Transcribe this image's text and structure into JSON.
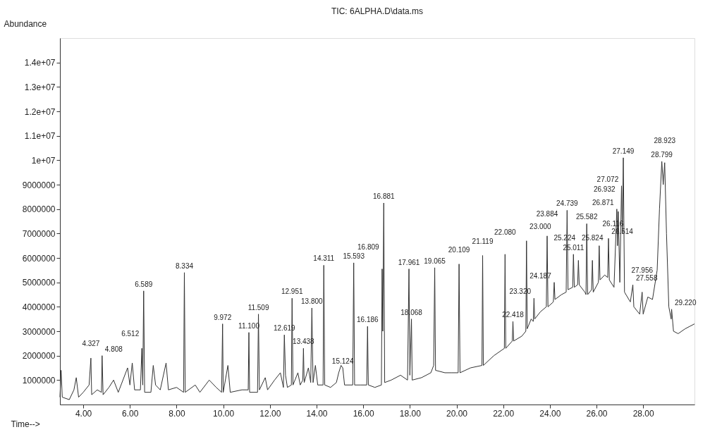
{
  "chart_data": {
    "type": "line",
    "title": "TIC: 6ALPHA.D\\data.ms",
    "xlabel": "Time-->",
    "ylabel": "Abundance",
    "xlim": [
      3.0,
      30.2
    ],
    "ylim": [
      0,
      15000000
    ],
    "grid": false,
    "marker": "none",
    "line_style": "solid",
    "xticks": [
      {
        "value": 4,
        "label": "4.00"
      },
      {
        "value": 6,
        "label": "6.00"
      },
      {
        "value": 8,
        "label": "8.00"
      },
      {
        "value": 10,
        "label": "10.00"
      },
      {
        "value": 12,
        "label": "12.00"
      },
      {
        "value": 14,
        "label": "14.00"
      },
      {
        "value": 16,
        "label": "16.00"
      },
      {
        "value": 18,
        "label": "18.00"
      },
      {
        "value": 20,
        "label": "20.00"
      },
      {
        "value": 22,
        "label": "22.00"
      },
      {
        "value": 24,
        "label": "24.00"
      },
      {
        "value": 26,
        "label": "26.00"
      },
      {
        "value": 28,
        "label": "28.00"
      }
    ],
    "yticks": [
      1000000,
      2000000,
      3000000,
      4000000,
      5000000,
      6000000,
      7000000,
      8000000,
      9000000,
      {
        "value": 10000000,
        "label": "1e+07"
      },
      {
        "value": 11000000,
        "label": "1.1e+07"
      },
      {
        "value": 12000000,
        "label": "1.2e+07"
      },
      {
        "value": 13000000,
        "label": "1.3e+07"
      },
      {
        "value": 14000000,
        "label": "1.4e+07"
      }
    ],
    "series": [
      {
        "color": "#333333",
        "x": [
          3.0,
          3.05,
          3.1,
          3.4,
          3.6,
          3.7,
          3.8,
          4.0,
          4.25,
          4.327,
          4.36,
          4.6,
          4.78,
          4.808,
          4.85,
          5.1,
          5.3,
          5.5,
          5.9,
          6.0,
          6.1,
          6.2,
          6.45,
          6.512,
          6.55,
          6.589,
          6.63,
          6.9,
          7.0,
          7.1,
          7.3,
          7.55,
          7.65,
          8.0,
          8.3,
          8.334,
          8.37,
          8.8,
          9.0,
          9.4,
          9.7,
          9.93,
          9.972,
          10.0,
          10.2,
          10.3,
          10.8,
          11.07,
          11.1,
          11.13,
          11.47,
          11.509,
          11.55,
          11.8,
          11.9,
          12.2,
          12.45,
          12.58,
          12.619,
          12.67,
          12.75,
          12.92,
          12.951,
          12.99,
          13.2,
          13.3,
          13.41,
          13.438,
          13.47,
          13.65,
          13.75,
          13.8,
          13.85,
          13.95,
          14.05,
          14.28,
          14.311,
          14.35,
          14.6,
          14.85,
          14.95,
          15.05,
          15.124,
          15.2,
          15.55,
          15.593,
          15.63,
          15.9,
          16.15,
          16.186,
          16.22,
          16.5,
          16.78,
          16.809,
          16.84,
          16.881,
          16.92,
          17.2,
          17.6,
          17.9,
          17.961,
          18.0,
          18.068,
          18.1,
          18.5,
          18.9,
          19.02,
          19.065,
          19.1,
          19.5,
          19.8,
          20.07,
          20.109,
          20.15,
          20.6,
          21.09,
          21.119,
          21.15,
          21.6,
          22.05,
          22.08,
          22.11,
          22.39,
          22.418,
          22.45,
          22.8,
          22.97,
          23.0,
          23.03,
          23.2,
          23.29,
          23.32,
          23.35,
          23.6,
          23.85,
          23.884,
          23.92,
          24.15,
          24.187,
          24.22,
          24.5,
          24.7,
          24.739,
          24.78,
          24.98,
          25.011,
          25.05,
          25.19,
          25.224,
          25.26,
          25.5,
          25.55,
          25.582,
          25.62,
          25.79,
          25.824,
          25.86,
          26.08,
          26.116,
          26.15,
          26.35,
          26.48,
          26.514,
          26.55,
          26.75,
          26.871,
          26.9,
          26.932,
          27.0,
          27.072,
          27.11,
          27.149,
          27.2,
          27.45,
          27.558,
          27.6,
          27.85,
          27.956,
          28.0,
          28.2,
          28.4,
          28.6,
          28.7,
          28.799,
          28.86,
          28.923,
          29.0,
          29.1,
          29.2,
          29.22,
          29.3,
          29.5,
          29.8,
          30.0,
          30.2
        ],
        "values": [
          300000,
          1400000,
          300000,
          200000,
          600000,
          1100000,
          300000,
          500000,
          800000,
          1900000,
          400000,
          600000,
          500000,
          2000000,
          400000,
          700000,
          1000000,
          500000,
          1500000,
          800000,
          1700000,
          600000,
          600000,
          2300000,
          800000,
          4650000,
          500000,
          500000,
          1600000,
          800000,
          600000,
          1700000,
          600000,
          700000,
          500000,
          5400000,
          500000,
          800000,
          500000,
          1000000,
          700000,
          500000,
          3300000,
          500000,
          1600000,
          500000,
          600000,
          600000,
          2950000,
          500000,
          500000,
          3700000,
          600000,
          1100000,
          600000,
          1000000,
          1300000,
          700000,
          2850000,
          1200000,
          700000,
          800000,
          4350000,
          800000,
          1300000,
          800000,
          1000000,
          2300000,
          900000,
          1500000,
          900000,
          3950000,
          900000,
          1600000,
          800000,
          800000,
          5700000,
          800000,
          700000,
          900000,
          1300000,
          1600000,
          1500000,
          800000,
          800000,
          5800000,
          800000,
          800000,
          800000,
          3200000,
          800000,
          700000,
          800000,
          5550000,
          3000000,
          8250000,
          900000,
          1000000,
          1200000,
          1000000,
          5550000,
          1200000,
          3500000,
          1000000,
          1100000,
          1300000,
          1600000,
          5600000,
          1400000,
          1300000,
          1300000,
          1300000,
          5750000,
          1300000,
          1500000,
          1600000,
          6100000,
          1600000,
          2000000,
          2300000,
          6150000,
          2300000,
          2600000,
          3400000,
          2600000,
          2800000,
          3000000,
          6700000,
          3100000,
          3500000,
          3400000,
          4350000,
          3500000,
          3800000,
          4000000,
          6900000,
          4000000,
          4200000,
          5000000,
          4300000,
          4500000,
          4600000,
          7950000,
          4700000,
          4800000,
          6150000,
          4800000,
          4900000,
          5900000,
          4900000,
          4600000,
          4500000,
          7400000,
          4500000,
          4700000,
          5900000,
          4600000,
          5000000,
          6500000,
          5100000,
          5300000,
          5200000,
          6800000,
          5100000,
          4800000,
          8000000,
          6500000,
          7900000,
          5000000,
          8950000,
          7000000,
          10100000,
          4600000,
          4200000,
          4900000,
          4000000,
          3700000,
          4600000,
          3700000,
          4400000,
          4300000,
          5500000,
          8000000,
          9950000,
          9000000,
          9900000,
          7000000,
          4000000,
          3500000,
          3900000,
          3000000,
          2900000,
          3100000,
          3200000,
          3300000
        ]
      }
    ],
    "annotations": [
      {
        "text": "4.327",
        "x": 4.327,
        "y": 1900000
      },
      {
        "text": "4.808",
        "x": 4.808,
        "y": 2000000
      },
      {
        "text": "6.512",
        "x": 6.512,
        "y": 2300000
      },
      {
        "text": "6.589",
        "x": 6.589,
        "y": 4650000
      },
      {
        "text": "8.334",
        "x": 8.334,
        "y": 5400000
      },
      {
        "text": "9.972",
        "x": 9.972,
        "y": 3300000
      },
      {
        "text": "11.100",
        "x": 11.1,
        "y": 2950000
      },
      {
        "text": "11.509",
        "x": 11.509,
        "y": 3700000
      },
      {
        "text": "12.619",
        "x": 12.619,
        "y": 2850000
      },
      {
        "text": "12.951",
        "x": 12.951,
        "y": 4350000
      },
      {
        "text": "13.438",
        "x": 13.438,
        "y": 2300000
      },
      {
        "text": "13.800",
        "x": 13.8,
        "y": 3950000
      },
      {
        "text": "14.311",
        "x": 14.311,
        "y": 5700000
      },
      {
        "text": "15.124",
        "x": 15.124,
        "y": 1500000
      },
      {
        "text": "15.593",
        "x": 15.593,
        "y": 5800000
      },
      {
        "text": "16.186",
        "x": 16.186,
        "y": 3200000
      },
      {
        "text": "16.809",
        "x": 16.809,
        "y": 5550000
      },
      {
        "text": "16.881",
        "x": 16.881,
        "y": 8250000
      },
      {
        "text": "17.961",
        "x": 17.961,
        "y": 5550000
      },
      {
        "text": "18.068",
        "x": 18.068,
        "y": 3500000
      },
      {
        "text": "19.065",
        "x": 19.065,
        "y": 5600000
      },
      {
        "text": "20.109",
        "x": 20.109,
        "y": 5750000
      },
      {
        "text": "21.119",
        "x": 21.119,
        "y": 6100000
      },
      {
        "text": "22.080",
        "x": 22.08,
        "y": 6150000
      },
      {
        "text": "22.418",
        "x": 22.418,
        "y": 3400000
      },
      {
        "text": "23.000",
        "x": 23.0,
        "y": 6700000
      },
      {
        "text": "23.320",
        "x": 23.32,
        "y": 4350000
      },
      {
        "text": "23.884",
        "x": 23.884,
        "y": 6900000
      },
      {
        "text": "24.187",
        "x": 24.187,
        "y": 5000000
      },
      {
        "text": "24.739",
        "x": 24.739,
        "y": 7950000
      },
      {
        "text": "25.011",
        "x": 25.011,
        "y": 6150000
      },
      {
        "text": "25.224",
        "x": 25.224,
        "y": 5900000
      },
      {
        "text": "25.582",
        "x": 25.582,
        "y": 7400000
      },
      {
        "text": "25.824",
        "x": 25.824,
        "y": 5900000
      },
      {
        "text": "26.116",
        "x": 26.116,
        "y": 6500000
      },
      {
        "text": "26.514",
        "x": 26.514,
        "y": 6800000
      },
      {
        "text": "26.871",
        "x": 26.871,
        "y": 8000000
      },
      {
        "text": "26.932",
        "x": 26.932,
        "y": 7900000
      },
      {
        "text": "27.072",
        "x": 27.072,
        "y": 8950000
      },
      {
        "text": "27.149",
        "x": 27.149,
        "y": 10100000
      },
      {
        "text": "27.558",
        "x": 27.558,
        "y": 4900000
      },
      {
        "text": "27.956",
        "x": 27.956,
        "y": 4600000
      },
      {
        "text": "28.799",
        "x": 28.799,
        "y": 9950000
      },
      {
        "text": "28.923",
        "x": 28.923,
        "y": 9900000
      },
      {
        "text": "29.220",
        "x": 29.22,
        "y": 3900000
      }
    ]
  }
}
